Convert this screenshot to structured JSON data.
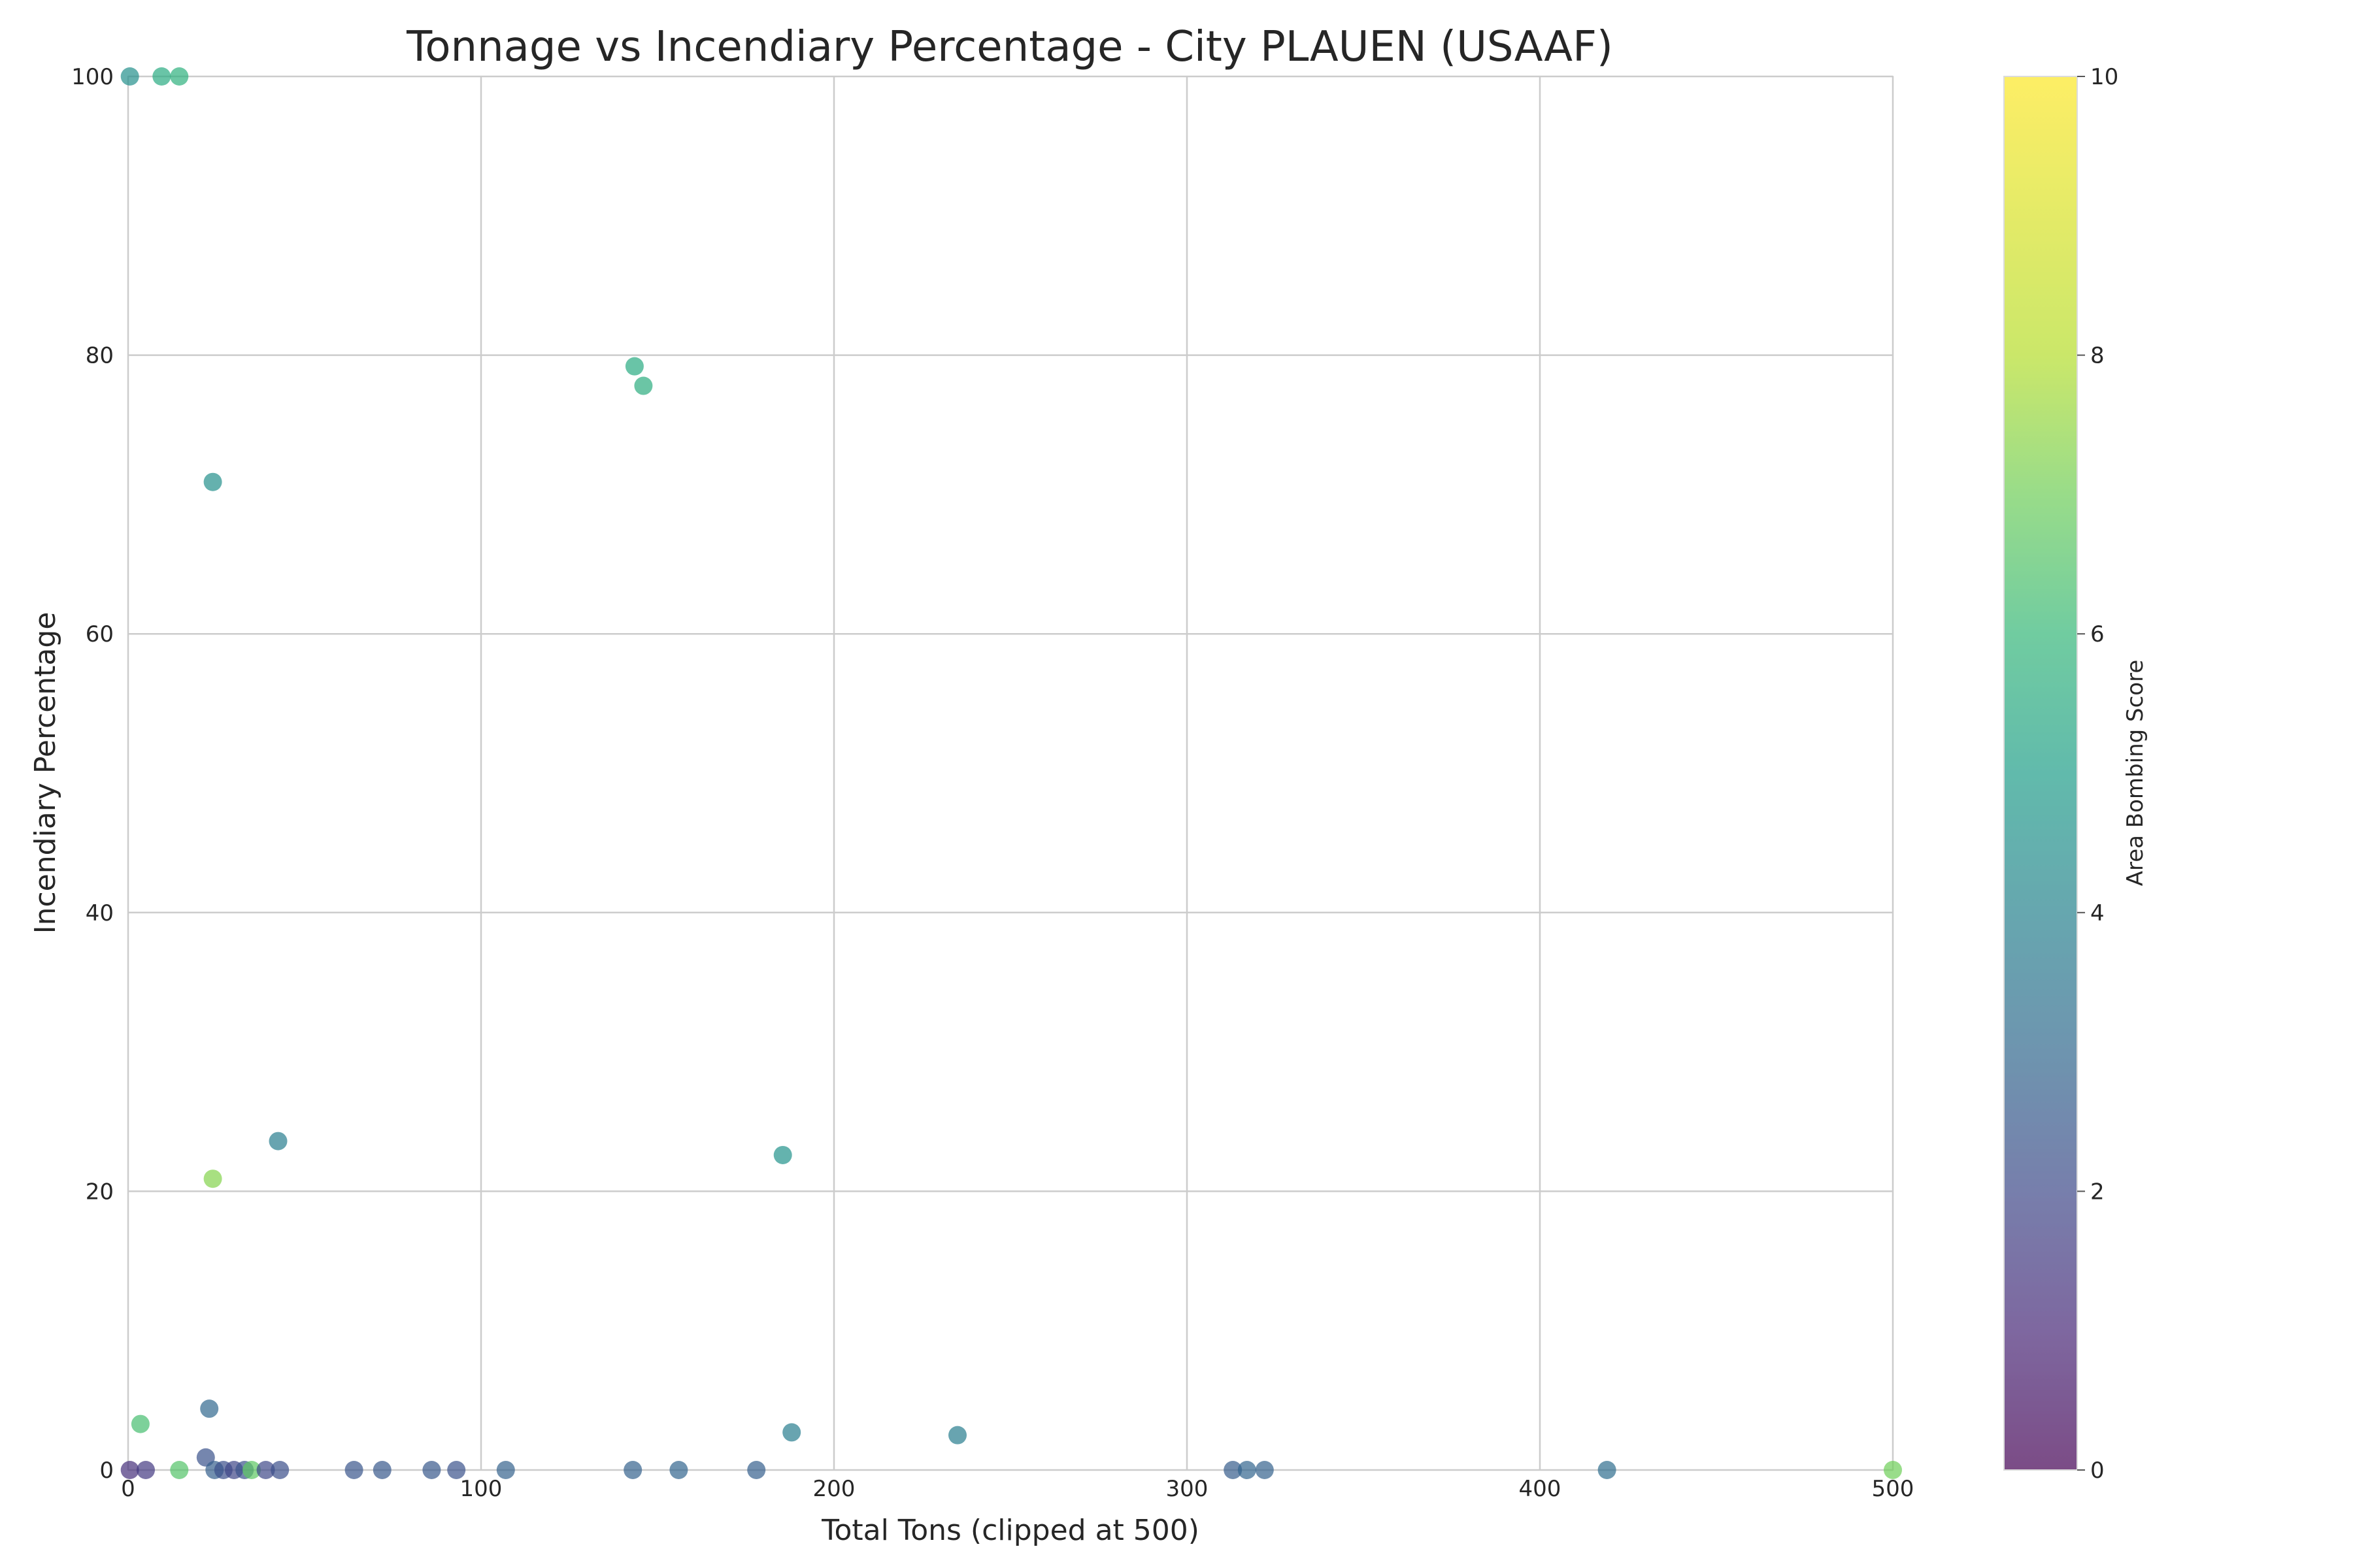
{
  "chart_data": {
    "type": "scatter",
    "title": "Tonnage vs Incendiary Percentage - City PLAUEN (USAAF)",
    "xlabel": "Total Tons (clipped at 500)",
    "ylabel": "Incendiary Percentage",
    "xlim": [
      0,
      500
    ],
    "ylim": [
      0,
      100
    ],
    "xticks": [
      0,
      100,
      200,
      300,
      400,
      500
    ],
    "yticks": [
      0,
      20,
      40,
      60,
      80,
      100
    ],
    "grid": true,
    "colormap": "viridis",
    "colorbar": {
      "label": "Area Bombing Score",
      "range": [
        0,
        10
      ],
      "ticks": [
        0,
        2,
        4,
        6,
        8,
        10
      ]
    },
    "points": [
      {
        "x": 0.5,
        "y": 100,
        "score": 4.5
      },
      {
        "x": 9.5,
        "y": 100,
        "score": 5.5
      },
      {
        "x": 14.5,
        "y": 100,
        "score": 5.7
      },
      {
        "x": 143.5,
        "y": 79.2,
        "score": 5.5
      },
      {
        "x": 146,
        "y": 77.8,
        "score": 5.6
      },
      {
        "x": 24,
        "y": 70.9,
        "score": 4.5
      },
      {
        "x": 42.5,
        "y": 23.6,
        "score": 3.8
      },
      {
        "x": 185.5,
        "y": 22.6,
        "score": 4.6
      },
      {
        "x": 24,
        "y": 20.9,
        "score": 7.3
      },
      {
        "x": 23,
        "y": 4.4,
        "score": 3.0
      },
      {
        "x": 3.5,
        "y": 3.3,
        "score": 6.3
      },
      {
        "x": 188,
        "y": 2.7,
        "score": 3.8
      },
      {
        "x": 235,
        "y": 2.5,
        "score": 3.8
      },
      {
        "x": 22,
        "y": 0.9,
        "score": 2.3
      },
      {
        "x": 0.5,
        "y": 0,
        "score": 1.2
      },
      {
        "x": 5,
        "y": 0,
        "score": 1.5
      },
      {
        "x": 14.5,
        "y": 0,
        "score": 6.5
      },
      {
        "x": 24.5,
        "y": 0,
        "score": 2.7
      },
      {
        "x": 27,
        "y": 0,
        "score": 2.2
      },
      {
        "x": 30,
        "y": 0,
        "score": 1.9
      },
      {
        "x": 33,
        "y": 0,
        "score": 2.3
      },
      {
        "x": 35,
        "y": 0,
        "score": 6.7
      },
      {
        "x": 39,
        "y": 0,
        "score": 2.0
      },
      {
        "x": 43,
        "y": 0,
        "score": 2.2
      },
      {
        "x": 64,
        "y": 0,
        "score": 2.4
      },
      {
        "x": 72,
        "y": 0,
        "score": 2.5
      },
      {
        "x": 86,
        "y": 0,
        "score": 2.5
      },
      {
        "x": 93,
        "y": 0,
        "score": 2.3
      },
      {
        "x": 107,
        "y": 0,
        "score": 2.8
      },
      {
        "x": 143,
        "y": 0,
        "score": 2.8
      },
      {
        "x": 156,
        "y": 0,
        "score": 2.9
      },
      {
        "x": 178,
        "y": 0,
        "score": 2.7
      },
      {
        "x": 313,
        "y": 0,
        "score": 2.6
      },
      {
        "x": 317,
        "y": 0,
        "score": 2.9
      },
      {
        "x": 322,
        "y": 0,
        "score": 2.8
      },
      {
        "x": 419,
        "y": 0,
        "score": 3.2
      },
      {
        "x": 500,
        "y": 0,
        "score": 7.0
      }
    ]
  }
}
